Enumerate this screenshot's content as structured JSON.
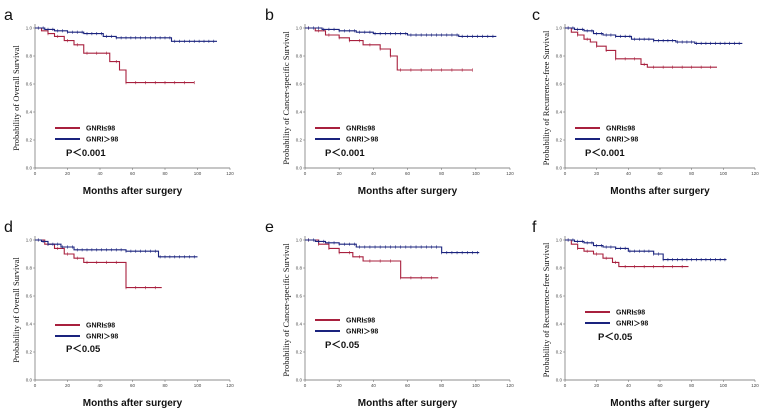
{
  "colors": {
    "low": "#a8203e",
    "high": "#1a237e",
    "axis": "#666666"
  },
  "chart_data": [
    {
      "type": "line",
      "panel": "a",
      "ylabel": "Probability of Overall Survival",
      "xlabel": "Months after surgery",
      "xlim": [
        0,
        120
      ],
      "ylim": [
        0,
        1.0
      ],
      "xticks": [
        "0",
        "20",
        "40",
        "60",
        "80",
        "100",
        "120"
      ],
      "yticks": [
        "0.0",
        "0.2",
        "0.4",
        "0.6",
        "0.8",
        "1.0"
      ],
      "legend": [
        "GNRI≤98",
        "GNRI＞98"
      ],
      "pvalue": "P＜0.001",
      "series": [
        {
          "name": "GNRI≤98",
          "x": [
            0,
            4,
            8,
            12,
            18,
            24,
            30,
            42,
            46,
            52,
            56,
            98
          ],
          "y": [
            1.0,
            0.98,
            0.96,
            0.94,
            0.91,
            0.88,
            0.82,
            0.82,
            0.76,
            0.7,
            0.61,
            0.61
          ]
        },
        {
          "name": "GNRI＞98",
          "x": [
            0,
            6,
            12,
            20,
            30,
            42,
            50,
            78,
            84,
            112
          ],
          "y": [
            1.0,
            0.99,
            0.98,
            0.97,
            0.96,
            0.94,
            0.93,
            0.93,
            0.905,
            0.905
          ]
        }
      ]
    },
    {
      "type": "line",
      "panel": "b",
      "ylabel": "Probability of Cancer-specific Survival",
      "xlabel": "Months after surgery",
      "xlim": [
        0,
        120
      ],
      "ylim": [
        0,
        1.0
      ],
      "xticks": [
        "0",
        "20",
        "40",
        "60",
        "80",
        "100",
        "120"
      ],
      "yticks": [
        "0.0",
        "0.2",
        "0.4",
        "0.6",
        "0.8",
        "1.0"
      ],
      "legend": [
        "GNRI≤98",
        "GNRI＞98"
      ],
      "pvalue": "P＜0.001",
      "series": [
        {
          "name": "GNRI≤98",
          "x": [
            0,
            6,
            12,
            20,
            26,
            34,
            44,
            50,
            54,
            98
          ],
          "y": [
            1.0,
            0.98,
            0.95,
            0.93,
            0.91,
            0.88,
            0.85,
            0.8,
            0.7,
            0.7
          ]
        },
        {
          "name": "GNRI＞98",
          "x": [
            0,
            10,
            20,
            30,
            40,
            60,
            90,
            112
          ],
          "y": [
            1.0,
            0.99,
            0.98,
            0.97,
            0.96,
            0.95,
            0.94,
            0.94
          ]
        }
      ]
    },
    {
      "type": "line",
      "panel": "c",
      "ylabel": "Probability of Recurrence-free Survival",
      "xlabel": "Months after surgery",
      "xlim": [
        0,
        120
      ],
      "ylim": [
        0,
        1.0
      ],
      "xticks": [
        "0",
        "20",
        "40",
        "60",
        "80",
        "100",
        "120"
      ],
      "yticks": [
        "0.0",
        "0.2",
        "0.4",
        "0.6",
        "0.8",
        "1.0"
      ],
      "legend": [
        "GNRI≤98",
        "GNRI＞98"
      ],
      "pvalue": "P＜0.001",
      "series": [
        {
          "name": "GNRI≤98",
          "x": [
            0,
            4,
            8,
            12,
            16,
            20,
            26,
            32,
            40,
            48,
            52,
            96
          ],
          "y": [
            1.0,
            0.97,
            0.95,
            0.92,
            0.9,
            0.87,
            0.84,
            0.78,
            0.78,
            0.74,
            0.72,
            0.72
          ]
        },
        {
          "name": "GNRI＞98",
          "x": [
            0,
            6,
            12,
            18,
            24,
            32,
            42,
            56,
            70,
            82,
            112
          ],
          "y": [
            1.0,
            0.99,
            0.98,
            0.96,
            0.95,
            0.94,
            0.92,
            0.91,
            0.9,
            0.89,
            0.89
          ]
        }
      ]
    },
    {
      "type": "line",
      "panel": "d",
      "ylabel": "Probability of Overall Survival",
      "xlabel": "Months after surgery",
      "xlim": [
        0,
        120
      ],
      "ylim": [
        0,
        1.0
      ],
      "xticks": [
        "0",
        "20",
        "40",
        "60",
        "80",
        "100",
        "120"
      ],
      "yticks": [
        "0.0",
        "0.2",
        "0.4",
        "0.6",
        "0.8",
        "1.0"
      ],
      "legend": [
        "GNRI≤98",
        "GNRI＞98"
      ],
      "pvalue": "P＜0.05",
      "series": [
        {
          "name": "GNRI≤98",
          "x": [
            0,
            6,
            12,
            18,
            24,
            30,
            50,
            56,
            78
          ],
          "y": [
            1.0,
            0.97,
            0.94,
            0.9,
            0.87,
            0.84,
            0.84,
            0.66,
            0.66
          ]
        },
        {
          "name": "GNRI＞98",
          "x": [
            0,
            4,
            8,
            16,
            24,
            56,
            76,
            100
          ],
          "y": [
            1.0,
            0.99,
            0.97,
            0.95,
            0.93,
            0.92,
            0.88,
            0.88
          ]
        }
      ]
    },
    {
      "type": "line",
      "panel": "e",
      "ylabel": "Probability of Cancer-specific Survival",
      "xlabel": "Months after surgery",
      "xlim": [
        0,
        120
      ],
      "ylim": [
        0,
        1.0
      ],
      "xticks": [
        "0",
        "20",
        "40",
        "60",
        "80",
        "100",
        "120"
      ],
      "yticks": [
        "0.0",
        "0.2",
        "0.4",
        "0.6",
        "0.8",
        "1.0"
      ],
      "legend": [
        "GNRI≤98",
        "GNRI＞98"
      ],
      "pvalue": "P＜0.05",
      "series": [
        {
          "name": "GNRI≤98",
          "x": [
            0,
            8,
            14,
            20,
            28,
            34,
            54,
            56,
            78
          ],
          "y": [
            1.0,
            0.97,
            0.94,
            0.91,
            0.88,
            0.85,
            0.85,
            0.73,
            0.73
          ]
        },
        {
          "name": "GNRI＞98",
          "x": [
            0,
            6,
            12,
            20,
            30,
            76,
            80,
            102
          ],
          "y": [
            1.0,
            0.99,
            0.98,
            0.97,
            0.95,
            0.95,
            0.91,
            0.91
          ]
        }
      ]
    },
    {
      "type": "line",
      "panel": "f",
      "ylabel": "Probability of Recurrence-free Survival",
      "xlabel": "Months after surgery",
      "xlim": [
        0,
        120
      ],
      "ylim": [
        0,
        1.0
      ],
      "xticks": [
        "0",
        "20",
        "40",
        "60",
        "80",
        "100",
        "120"
      ],
      "yticks": [
        "0.0",
        "0.2",
        "0.4",
        "0.6",
        "0.8",
        "1.0"
      ],
      "legend": [
        "GNRI≤98",
        "GNRI＞98"
      ],
      "pvalue": "P＜0.05",
      "series": [
        {
          "name": "GNRI≤98",
          "x": [
            0,
            4,
            8,
            12,
            18,
            24,
            30,
            34,
            78
          ],
          "y": [
            1.0,
            0.97,
            0.94,
            0.92,
            0.9,
            0.87,
            0.84,
            0.81,
            0.81
          ]
        },
        {
          "name": "GNRI＞98",
          "x": [
            0,
            6,
            12,
            18,
            24,
            32,
            40,
            56,
            62,
            102
          ],
          "y": [
            1.0,
            0.99,
            0.98,
            0.96,
            0.95,
            0.94,
            0.92,
            0.9,
            0.86,
            0.86
          ]
        }
      ]
    }
  ]
}
